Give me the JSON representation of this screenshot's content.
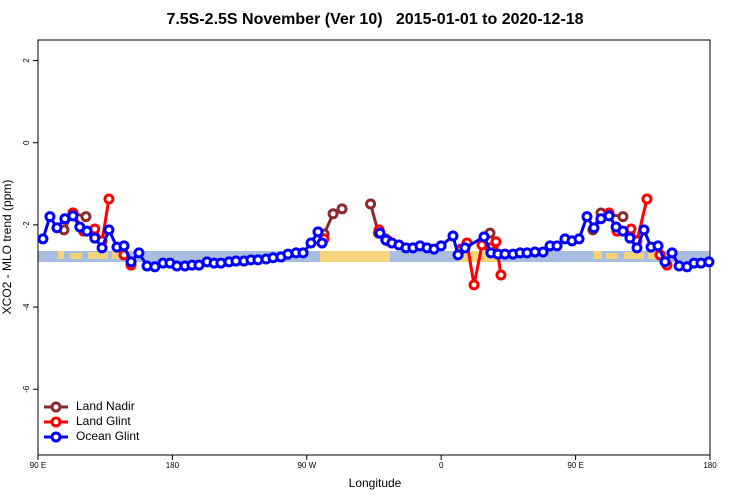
{
  "chart_data": {
    "type": "line",
    "title": "7.5S-2.5S November (Ver 10)   2015-01-01 to 2020-12-18",
    "x_label": "Longitude",
    "y_label": "XCO2 - MLO trend (ppm)",
    "xlim": [
      90,
      540
    ],
    "xticks": [
      {
        "value": 90,
        "label": "90 E"
      },
      180,
      {
        "value": 270,
        "label": "90 W"
      },
      {
        "value": 360,
        "label": "0"
      },
      {
        "value": 450,
        "label": "90 E"
      },
      {
        "value": 540,
        "label": "180"
      }
    ],
    "ylim": [
      -7.6,
      2.5
    ],
    "yticks": [
      2,
      0,
      -2,
      -4,
      -6
    ],
    "legend": "bottom-left",
    "series": [
      {
        "name": "Land Nadir",
        "color": "#8b2a2a",
        "x": [
          107.4,
          113.4,
          122.1,
          null,
          281.6,
          287.6,
          293.6,
          null,
          312.7,
          318.0,
          322.7,
          null,
          392.7,
          null,
          461.6,
          467.0,
          481.7
        ],
        "values": [
          -2.12,
          -1.71,
          -1.8,
          null,
          -2.22,
          -1.73,
          -1.61,
          null,
          -1.49,
          -2.2,
          -2.34,
          null,
          -2.2,
          null,
          -2.12,
          -1.71,
          -1.8
        ]
      },
      {
        "name": "Land Glint",
        "color": "#ff0000",
        "x": [
          113.4,
          120.5,
          128.0,
          132.9,
          137.5,
          null,
          147.6,
          152.3,
          null,
          281.5,
          null,
          318.4,
          324.4,
          null,
          373.3,
          377.3,
          382.0,
          387.3,
          392.7,
          396.7,
          400.0,
          null,
          472.4,
          477.7,
          487.1,
          491.1,
          497.8,
          null,
          506.5,
          511.2
        ],
        "values": [
          -1.71,
          -2.15,
          -2.1,
          -2.39,
          -1.37,
          null,
          -2.73,
          -2.98,
          null,
          -2.34,
          null,
          -2.12,
          -2.39,
          null,
          -2.59,
          -2.44,
          -3.46,
          -2.49,
          -2.56,
          -2.41,
          -3.22,
          null,
          -1.71,
          -2.15,
          -2.1,
          -2.39,
          -1.37,
          null,
          -2.73,
          -2.98
        ]
      },
      {
        "name": "Ocean Glint",
        "color": "#0000ff",
        "x": [
          93.3,
          98.0,
          102.7,
          108.0,
          113.4,
          118.0,
          122.8,
          128.0,
          132.9,
          137.5,
          142.9,
          147.6,
          152.3,
          157.6,
          163.0,
          168.3,
          173.7,
          178.4,
          183.0,
          188.4,
          193.1,
          197.8,
          203.2,
          207.9,
          212.5,
          217.9,
          222.6,
          227.9,
          232.6,
          237.3,
          242.7,
          247.4,
          252.7,
          257.4,
          262.8,
          267.5,
          272.8,
          277.5,
          280.2,
          null,
          319.0,
          323.0,
          327.0,
          331.7,
          336.4,
          341.1,
          345.8,
          350.5,
          355.2,
          359.9,
          367.9,
          371.3,
          375.9,
          388.7,
          393.3,
          398.0,
          402.7,
          408.1,
          412.8,
          417.5,
          422.8,
          428.2,
          432.9,
          437.6,
          442.9,
          447.6,
          452.3,
          457.6,
          462.3,
          467.0,
          472.4,
          477.1,
          481.7,
          486.4,
          491.1,
          495.8,
          500.5,
          505.2,
          509.9,
          514.6,
          519.3,
          524.6,
          529.3,
          534.0,
          539.3
        ],
        "values": [
          -2.34,
          -1.8,
          -2.07,
          -1.85,
          -1.78,
          -2.05,
          -2.15,
          -2.32,
          -2.56,
          -2.12,
          -2.54,
          -2.51,
          -2.9,
          -2.68,
          -3.0,
          -3.02,
          -2.93,
          -2.93,
          -3.0,
          -3.0,
          -2.98,
          -2.98,
          -2.9,
          -2.93,
          -2.93,
          -2.9,
          -2.88,
          -2.88,
          -2.85,
          -2.85,
          -2.83,
          -2.8,
          -2.78,
          -2.71,
          -2.68,
          -2.68,
          -2.44,
          -2.17,
          -2.44,
          null,
          -2.2,
          -2.37,
          -2.44,
          -2.49,
          -2.56,
          -2.56,
          -2.51,
          -2.56,
          -2.59,
          -2.51,
          -2.27,
          -2.73,
          -2.56,
          -2.29,
          -2.68,
          -2.71,
          -2.71,
          -2.71,
          -2.68,
          -2.68,
          -2.66,
          -2.66,
          -2.51,
          -2.51,
          -2.34,
          -2.39,
          -2.34,
          -1.8,
          -2.07,
          -1.85,
          -1.78,
          -2.05,
          -2.15,
          -2.32,
          -2.56,
          -2.12,
          -2.54,
          -2.51,
          -2.9,
          -2.68,
          -3.0,
          -3.02,
          -2.93,
          -2.93,
          -2.9
        ]
      }
    ]
  }
}
